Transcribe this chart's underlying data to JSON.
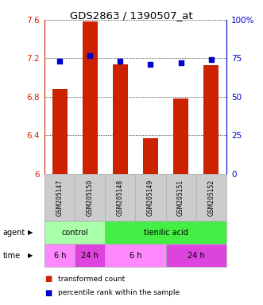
{
  "title": "GDS2863 / 1390507_at",
  "samples": [
    "GSM205147",
    "GSM205150",
    "GSM205148",
    "GSM205149",
    "GSM205151",
    "GSM205152"
  ],
  "bar_values": [
    6.88,
    7.58,
    7.14,
    6.37,
    6.78,
    7.13
  ],
  "dot_values": [
    73,
    77,
    73,
    71,
    72,
    74
  ],
  "ylim_left": [
    6.0,
    7.6
  ],
  "ylim_right": [
    0,
    100
  ],
  "yticks_left": [
    6.0,
    6.4,
    6.8,
    7.2,
    7.6
  ],
  "ytick_labels_left": [
    "6",
    "6.4",
    "6.8",
    "7.2",
    "7.6"
  ],
  "yticks_right": [
    0,
    25,
    50,
    75,
    100
  ],
  "ytick_labels_right": [
    "0",
    "25",
    "50",
    "75",
    "100%"
  ],
  "bar_color": "#cc2200",
  "dot_color": "#0000cc",
  "grid_color": "#000000",
  "agent_row": [
    {
      "label": "control",
      "start": 0,
      "end": 2,
      "color": "#aaffaa"
    },
    {
      "label": "tienilic acid",
      "start": 2,
      "end": 6,
      "color": "#44ee44"
    }
  ],
  "time_row": [
    {
      "label": "6 h",
      "start": 0,
      "end": 1,
      "color": "#ff88ff"
    },
    {
      "label": "24 h",
      "start": 1,
      "end": 2,
      "color": "#dd44dd"
    },
    {
      "label": "6 h",
      "start": 2,
      "end": 4,
      "color": "#ff88ff"
    },
    {
      "label": "24 h",
      "start": 4,
      "end": 6,
      "color": "#dd44dd"
    }
  ],
  "legend_bar_label": "transformed count",
  "legend_dot_label": "percentile rank within the sample",
  "sample_bg_color": "#cccccc",
  "axis_color_left": "#cc2200",
  "axis_color_right": "#0000cc"
}
